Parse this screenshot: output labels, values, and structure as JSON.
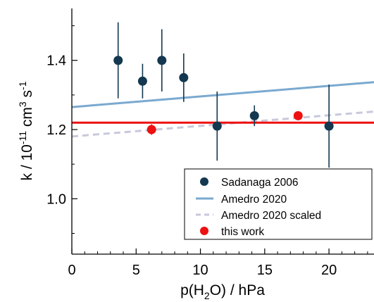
{
  "chart_data": {
    "type": "scatter",
    "xlabel": {
      "prefix": "p(H",
      "sub": "2",
      "suffix": "O) / hPa"
    },
    "ylabel": {
      "prefix": "k / 10",
      "sup1": "-11",
      "mid": " cm",
      "sup2": "3",
      "mid2": " s",
      "sup3": "-1"
    },
    "xlim": [
      0,
      23.5
    ],
    "ylim": [
      0.84,
      1.55
    ],
    "x_ticks": [
      0,
      5,
      10,
      15,
      20
    ],
    "x_tick_labels": [
      "0",
      "5",
      "10",
      "15",
      "20"
    ],
    "y_ticks": [
      1.0,
      1.2,
      1.4
    ],
    "y_tick_labels": [
      "1.0",
      "1.2",
      "1.4"
    ],
    "grid": false,
    "legend_position": "bottom-right",
    "series": [
      {
        "name": "Sadanaga 2006",
        "kind": "points_with_errorbars",
        "color": "#13384f",
        "points": [
          {
            "x": 3.6,
            "y": 1.4,
            "err": 0.11
          },
          {
            "x": 5.5,
            "y": 1.34,
            "err": 0.05
          },
          {
            "x": 7.0,
            "y": 1.4,
            "err": 0.09
          },
          {
            "x": 8.7,
            "y": 1.35,
            "err": 0.07
          },
          {
            "x": 11.3,
            "y": 1.21,
            "err": 0.1
          },
          {
            "x": 14.2,
            "y": 1.24,
            "err": 0.03
          },
          {
            "x": 20.0,
            "y": 1.21,
            "err": 0.12
          }
        ]
      },
      {
        "name": "Amedro 2020",
        "kind": "line",
        "style": "solid",
        "color": "#7aa9cf",
        "points": [
          {
            "x": 0,
            "y": 1.265
          },
          {
            "x": 23.5,
            "y": 1.337
          }
        ]
      },
      {
        "name": "Amedro 2020 scaled",
        "kind": "line",
        "style": "dashed",
        "color": "#c8c8dc",
        "points": [
          {
            "x": 0,
            "y": 1.18
          },
          {
            "x": 23.5,
            "y": 1.252
          }
        ]
      },
      {
        "name": "this work",
        "kind": "points_with_line",
        "color": "#ee1111",
        "line_y": 1.22,
        "points": [
          {
            "x": 6.2,
            "y": 1.2,
            "err": 0.015
          },
          {
            "x": 17.6,
            "y": 1.24,
            "err": 0.01
          }
        ]
      }
    ]
  }
}
